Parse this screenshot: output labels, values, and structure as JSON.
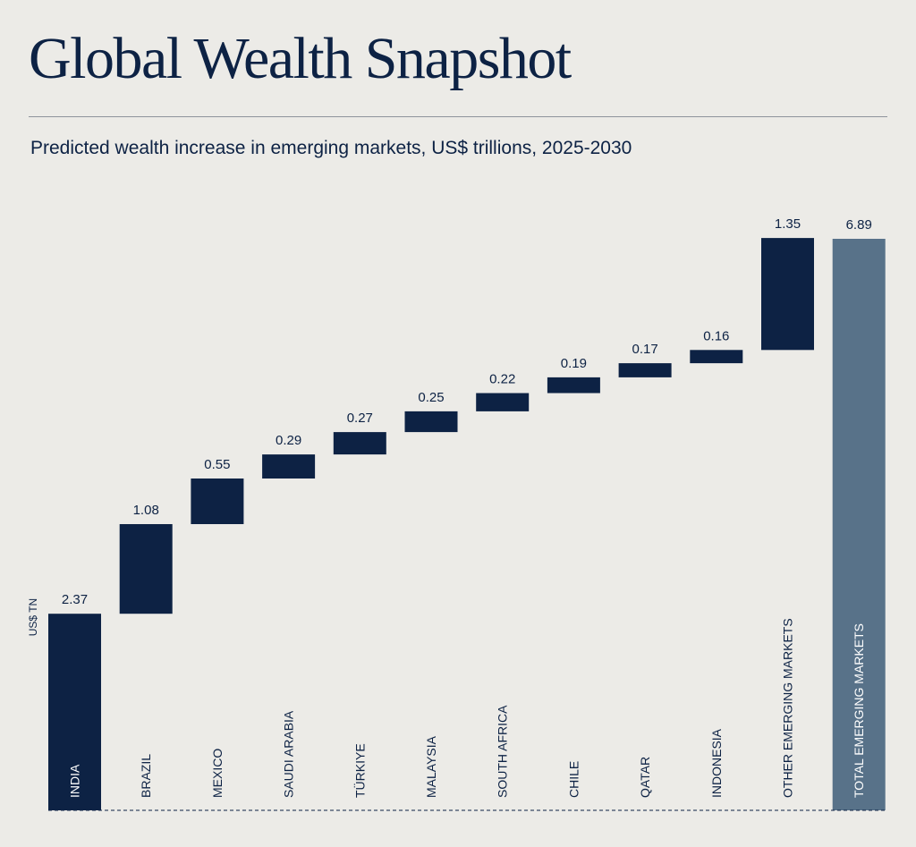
{
  "title": "Global Wealth Snapshot",
  "subtitle": "Predicted wealth increase in emerging markets, US$ trillions, 2025-2030",
  "colors": {
    "background": "#ecebe7",
    "bar": "#0d2244",
    "total_bar": "#587289",
    "text": "#0d2244",
    "rule": "#8e949c"
  },
  "chart_data": {
    "type": "bar",
    "variant": "waterfall",
    "ylabel": "US$ TN",
    "categories": [
      "INDIA",
      "BRAZIL",
      "MEXICO",
      "SAUDI ARABIA",
      "TÜRKIYE",
      "MALAYSIA",
      "SOUTH AFRICA",
      "CHILE",
      "QATAR",
      "INDONESIA",
      "OTHER EMERGING MARKETS",
      "TOTAL EMERGING MARKETS"
    ],
    "values": [
      2.37,
      1.08,
      0.55,
      0.29,
      0.27,
      0.25,
      0.22,
      0.19,
      0.17,
      0.16,
      1.35,
      6.89
    ],
    "value_labels": [
      "2.37",
      "1.08",
      "0.55",
      "0.29",
      "0.27",
      "0.25",
      "0.22",
      "0.19",
      "0.17",
      "0.16",
      "1.35",
      "6.89"
    ],
    "total_index": 11,
    "ylim": [
      0,
      6.89
    ],
    "grid": false,
    "legend": "none"
  }
}
